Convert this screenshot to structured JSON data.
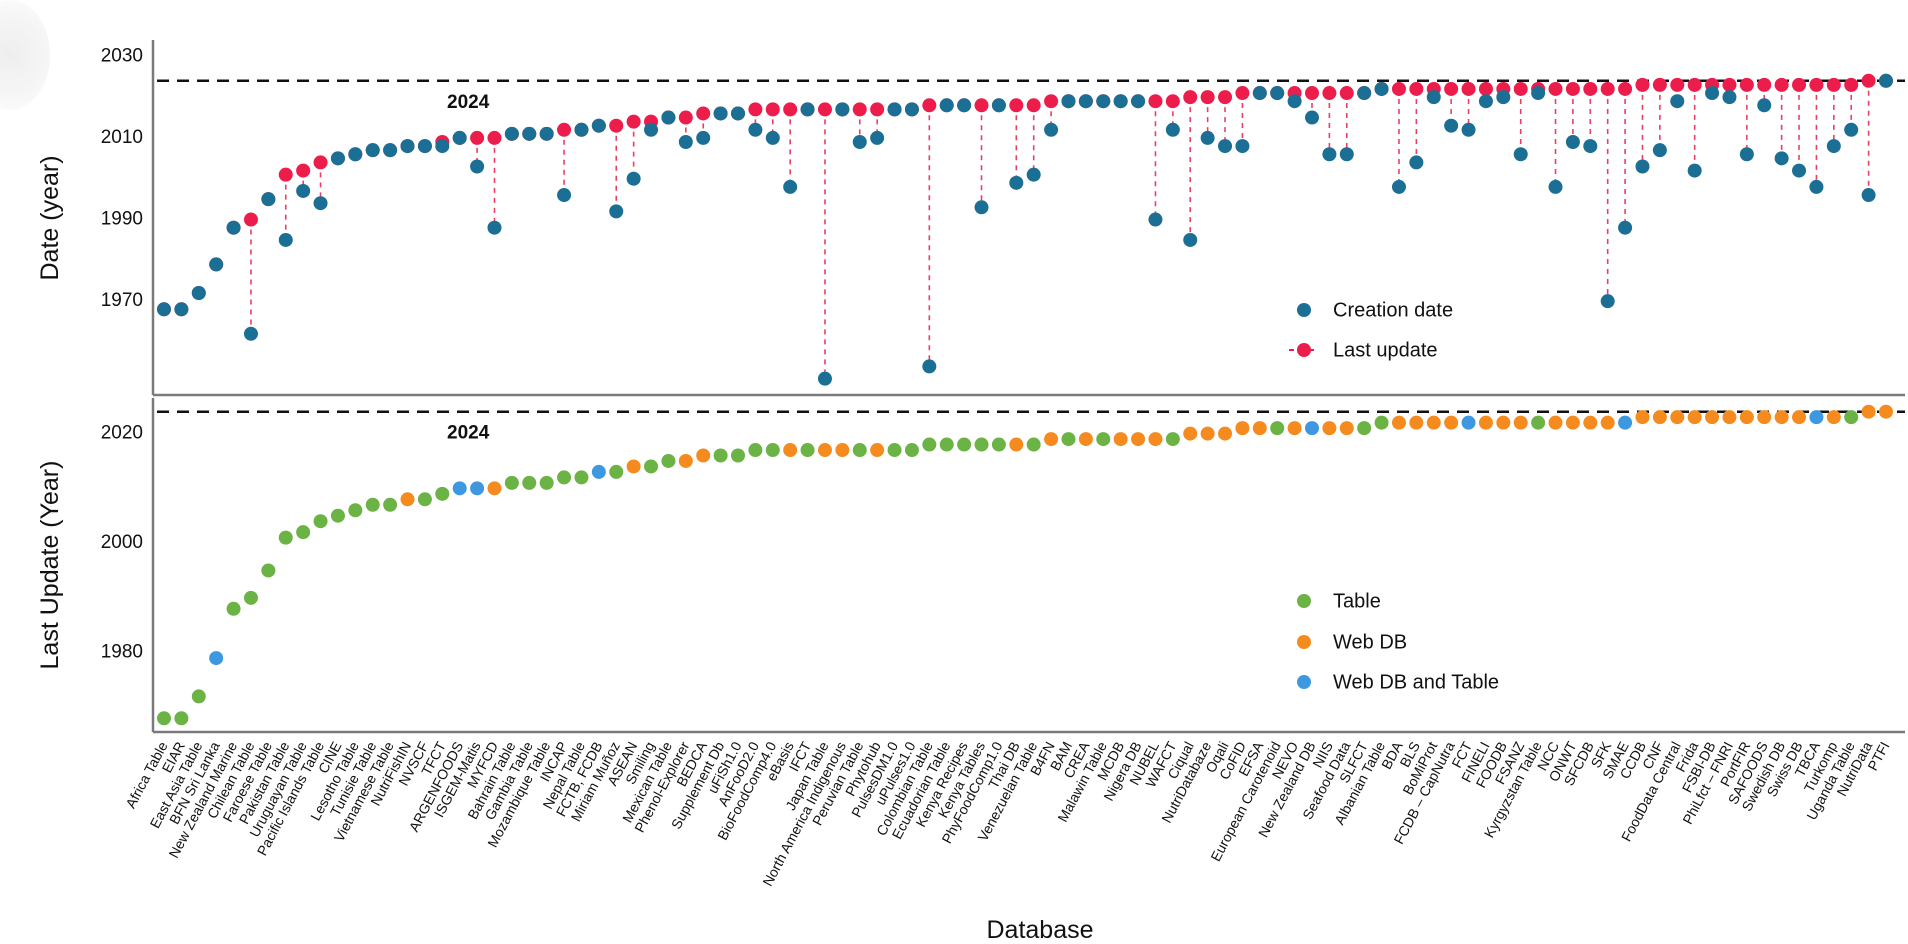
{
  "chart_data": {
    "type": "scatter",
    "xlabel": "Database",
    "categories": [
      "Africa Table",
      "EIAR",
      "East Asia Table",
      "BFN Sri Lanka",
      "New Zealand Marine",
      "Chilean Table",
      "Faroese Table",
      "Pakistan Table",
      "Uruguayan Table",
      "Pacific Islands Table",
      "CINE",
      "Lesotho Table",
      "Tunisie Table",
      "Vietnamese Table",
      "NutriFishIN",
      "NVSCF",
      "TFCT",
      "ARGENFOODS",
      "ISGEM-Matis",
      "MYFCD",
      "Bahrain Table",
      "Gambia Table",
      "Mozambique Table",
      "INCAP",
      "Nepal Table",
      "FCTB, FCDB",
      "Miriam Muñoz",
      "ASEAN",
      "Smiling",
      "Mexican Table",
      "Phenol-Explorer",
      "BEDCA",
      "Supplement Db",
      "uFiSh1.0",
      "AnFooD2.0",
      "BioFoodComp4.0",
      "eBasis",
      "IFCT",
      "Japan Table",
      "North America Indigenous",
      "Peruvian Table",
      "Phytohub",
      "PulsesDM1.0",
      "uPulses1.0",
      "Colombian Table",
      "Ecuadorian Table",
      "Kenya Recipes",
      "Kenya Tables",
      "PhyFoodComp1.0",
      "Thai DB",
      "Venezuelan Table",
      "B4FN",
      "BAM",
      "CREA",
      "Malawin Table",
      "MCDB",
      "Nigera DB",
      "NUBEL",
      "WAFCT",
      "Ciqual",
      "NutriDatabaze",
      "Oqali",
      "CoFID",
      "EFSA",
      "European Carotenoid",
      "NEVO",
      "New Zealand DB",
      "NIIS",
      "Seafood Data",
      "SLFCT",
      "Albanian Table",
      "BDA",
      "BLS",
      "BoMiProt",
      "FCDB – CapNutra",
      "FCT",
      "FINELI",
      "FOODB",
      "FSANZ",
      "Kyrgyzstan Table",
      "NCC",
      "ONWT",
      "SFCDB",
      "SFK",
      "SMAE",
      "CCDB",
      "CNF",
      "FoodData Central",
      "Frida",
      "FSBI-DB",
      "PhiLfct – FNRI",
      "PortFIR",
      "SAFOODS",
      "Swedish DB",
      "Swiss DB",
      "TBCA",
      "Turkomp",
      "Uganda Table",
      "NutriData",
      "PTFI"
    ],
    "creation_date": [
      1968,
      1968,
      1972,
      1979,
      1988,
      1962,
      1995,
      1985,
      1997,
      1994,
      2005,
      2006,
      2007,
      2007,
      2008,
      2008,
      2008,
      2010,
      2003,
      1988,
      2011,
      2011,
      2011,
      1996,
      2012,
      2013,
      1992,
      2000,
      2012,
      2015,
      2009,
      2010,
      2016,
      2016,
      2012,
      2010,
      1998,
      2017,
      1951,
      2017,
      2009,
      2010,
      2017,
      2017,
      1954,
      2018,
      2018,
      1993,
      2018,
      1999,
      2001,
      2012,
      2019,
      2019,
      2019,
      2019,
      2019,
      1990,
      2012,
      1985,
      2010,
      2008,
      2008,
      2021,
      2021,
      2019,
      2015,
      2006,
      2006,
      2021,
      2022,
      1998,
      2004,
      2020,
      2013,
      2012,
      2019,
      2020,
      2006,
      2021,
      1998,
      2009,
      2008,
      1970,
      1988,
      2003,
      2007,
      2019,
      2002,
      2021,
      2020,
      2006,
      2018,
      2005,
      2002,
      1998,
      2008,
      2012,
      1996,
      2024
    ],
    "last_update": [
      1968,
      1968,
      1972,
      1979,
      1988,
      1990,
      1995,
      2001,
      2002,
      2004,
      2005,
      2006,
      2007,
      2007,
      2008,
      2008,
      2009,
      2010,
      2010,
      2010,
      2011,
      2011,
      2011,
      2012,
      2012,
      2013,
      2013,
      2014,
      2014,
      2015,
      2015,
      2016,
      2016,
      2016,
      2017,
      2017,
      2017,
      2017,
      2017,
      2017,
      2017,
      2017,
      2017,
      2017,
      2018,
      2018,
      2018,
      2018,
      2018,
      2018,
      2018,
      2019,
      2019,
      2019,
      2019,
      2019,
      2019,
      2019,
      2019,
      2020,
      2020,
      2020,
      2021,
      2021,
      2021,
      2021,
      2021,
      2021,
      2021,
      2021,
      2022,
      2022,
      2022,
      2022,
      2022,
      2022,
      2022,
      2022,
      2022,
      2022,
      2022,
      2022,
      2022,
      2022,
      2022,
      2023,
      2023,
      2023,
      2023,
      2023,
      2023,
      2023,
      2023,
      2023,
      2023,
      2023,
      2023,
      2023,
      2024,
      2024
    ],
    "source_type": [
      "Table",
      "Table",
      "Table",
      "Web DB and Table",
      "Table",
      "Table",
      "Table",
      "Table",
      "Table",
      "Table",
      "Table",
      "Table",
      "Table",
      "Table",
      "Web DB",
      "Table",
      "Table",
      "Web DB and Table",
      "Web DB and Table",
      "Web DB",
      "Table",
      "Table",
      "Table",
      "Table",
      "Table",
      "Web DB and Table",
      "Table",
      "Web DB",
      "Table",
      "Table",
      "Web DB",
      "Web DB",
      "Table",
      "Table",
      "Table",
      "Table",
      "Web DB",
      "Table",
      "Web DB",
      "Web DB",
      "Table",
      "Web DB",
      "Table",
      "Table",
      "Table",
      "Table",
      "Table",
      "Table",
      "Table",
      "Web DB",
      "Table",
      "Web DB",
      "Table",
      "Web DB",
      "Table",
      "Web DB",
      "Web DB",
      "Web DB",
      "Table",
      "Web DB",
      "Web DB",
      "Web DB",
      "Web DB",
      "Web DB",
      "Table",
      "Web DB",
      "Web DB and Table",
      "Web DB",
      "Web DB",
      "Table",
      "Table",
      "Web DB",
      "Web DB",
      "Web DB",
      "Web DB",
      "Web DB and Table",
      "Web DB",
      "Web DB",
      "Web DB",
      "Table",
      "Web DB",
      "Web DB",
      "Web DB",
      "Web DB",
      "Web DB and Table",
      "Web DB",
      "Web DB",
      "Web DB",
      "Web DB",
      "Web DB",
      "Web DB",
      "Web DB",
      "Web DB",
      "Web DB",
      "Web DB",
      "Web DB and Table",
      "Web DB",
      "Table",
      "Web DB",
      "Web DB"
    ],
    "reference_line": {
      "value": 2024,
      "label": "2024",
      "style": "dashed"
    },
    "grid": false,
    "panels": [
      {
        "ylabel": "Date (year)",
        "ylim": [
          1947,
          2034
        ],
        "yticks": [
          1970,
          1990,
          2010,
          2030
        ],
        "ytick_labels": [
          "1970",
          "1990",
          "2010",
          "2030"
        ],
        "legend_position": "center-right",
        "legend": [
          {
            "name": "Creation date",
            "color": "#1b6f94"
          },
          {
            "name": "Last update",
            "color": "#ec1c4b"
          }
        ],
        "connector": "dashed line from creation date to last update"
      },
      {
        "ylabel": "Last Update (Year)",
        "ylim": [
          1965.5,
          2026.5
        ],
        "yticks": [
          1980,
          2000,
          2020
        ],
        "ytick_labels": [
          "1980",
          "2000",
          "2020"
        ],
        "legend_position": "center-right",
        "legend": [
          {
            "name": "Table",
            "color": "#6ab344"
          },
          {
            "name": "Web DB",
            "color": "#f58b1f"
          },
          {
            "name": "Web DB and Table",
            "color": "#3e98df"
          }
        ]
      }
    ]
  }
}
